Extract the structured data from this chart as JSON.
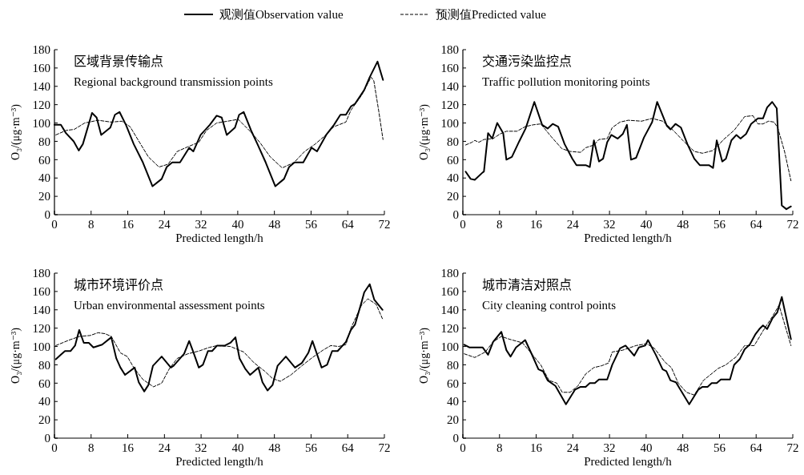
{
  "chart_data": [
    {
      "type": "line",
      "title": "区域背景传输点",
      "subtitle": "Regional background transmission points",
      "xlabel": "Predicted length/h",
      "ylabel": "O₃/(μg·m⁻³)",
      "xlim": [
        0,
        72
      ],
      "xticks": [
        0,
        8,
        16,
        24,
        32,
        40,
        48,
        56,
        64,
        72
      ],
      "ylim": [
        0,
        180
      ],
      "yticks": [
        0,
        20,
        40,
        60,
        80,
        100,
        120,
        140,
        160,
        180
      ],
      "grid": false,
      "legend": "top",
      "series": [
        {
          "name": "观测值Observation value",
          "color": "#000000",
          "line_style": "solid",
          "x": [
            0,
            1.4,
            2.5,
            4.2,
            5.3,
            6.2,
            8.2,
            9.2,
            10.2,
            12.2,
            13.2,
            14.2,
            15.6,
            17.3,
            19.3,
            21.4,
            23.4,
            24.5,
            25.7,
            27.4,
            29.4,
            30.3,
            31.9,
            33.9,
            35.4,
            36.5,
            37.6,
            39.4,
            40.3,
            41.3,
            42.9,
            44.3,
            46.1,
            48.2,
            50.1,
            51.2,
            52.4,
            54.3,
            56.1,
            57.3,
            59.3,
            61,
            62.4,
            63.6,
            64.7,
            65.6,
            67.6,
            68.8,
            70.5,
            71.7
          ],
          "values": [
            98,
            98,
            89,
            80,
            70,
            77,
            111,
            106,
            87,
            95,
            109,
            112,
            98,
            77,
            57,
            31,
            39,
            52,
            57,
            57,
            73,
            69,
            87,
            98,
            108,
            106,
            87,
            95,
            109,
            112,
            92,
            77,
            57,
            31,
            39,
            52,
            57,
            57,
            73,
            69,
            87,
            98,
            109,
            109,
            118,
            121,
            136,
            150,
            167,
            147
          ]
        },
        {
          "name": "预测值Predicted value",
          "color": "#000000",
          "line_style": "dashed",
          "x": [
            0.3,
            2.6,
            4.3,
            6.6,
            9.5,
            12.4,
            14.7,
            16.5,
            18.8,
            20.5,
            22.8,
            24.8,
            26.8,
            29.1,
            31.5,
            33.2,
            35.4,
            37.8,
            40.1,
            42.5,
            44.8,
            47.1,
            49.7,
            52.3,
            54.6,
            56.9,
            59,
            61,
            63.6,
            64.7,
            67,
            69.1,
            69.7,
            70.8,
            71.7
          ],
          "values": [
            87,
            92,
            93,
            100,
            103,
            101,
            102,
            96,
            77,
            63,
            52,
            55,
            69,
            74,
            79,
            92,
            100,
            102,
            104,
            92,
            79,
            63,
            51,
            57,
            69,
            77,
            86,
            96,
            101,
            114,
            130,
            150,
            146,
            112,
            82
          ]
        }
      ]
    },
    {
      "type": "line",
      "title": "交通污染监控点",
      "subtitle": "Traffic pollution monitoring points",
      "xlabel": "Predicted length/h",
      "ylabel": "O₃/(μg·m⁻³)",
      "xlim": [
        0,
        72
      ],
      "xticks": [
        0,
        8,
        16,
        24,
        32,
        40,
        48,
        56,
        64,
        72
      ],
      "ylim": [
        0,
        180
      ],
      "yticks": [
        0,
        20,
        40,
        60,
        80,
        100,
        120,
        140,
        160,
        180
      ],
      "grid": false,
      "series": [
        {
          "color": "#000000",
          "line_style": "solid",
          "x": [
            0.6,
            1.7,
            2.6,
            4.3,
            4.6,
            5.5,
            6.4,
            7.5,
            8.8,
            9.5,
            10.7,
            12.3,
            13.7,
            15.6,
            17.3,
            18.5,
            19.6,
            20.8,
            22.2,
            23.9,
            24.8,
            26.8,
            27.7,
            28.6,
            29.7,
            30.6,
            31.5,
            32.4,
            33.8,
            34.9,
            35.8,
            36.7,
            37.8,
            39.5,
            41.3,
            42.4,
            44.5,
            45.3,
            46.4,
            47.6,
            49,
            50.5,
            51.7,
            53.7,
            54.6,
            55.4,
            56.6,
            57.4,
            58.6,
            59.7,
            60.6,
            61.8,
            62.9,
            64.4,
            65.5,
            66.4,
            67.5,
            68.5,
            69.6,
            70.6,
            71.6
          ],
          "values": [
            47,
            39,
            38,
            46,
            47,
            89,
            83,
            100,
            89,
            60,
            63,
            80,
            94,
            123,
            98,
            94,
            99,
            96,
            77,
            61,
            54,
            54,
            52,
            81,
            58,
            61,
            79,
            87,
            83,
            88,
            98,
            60,
            62,
            84,
            101,
            123,
            97,
            93,
            99,
            95,
            77,
            61,
            54,
            54,
            51,
            81,
            58,
            61,
            81,
            87,
            83,
            88,
            99,
            105,
            105,
            117,
            123,
            116,
            10,
            6,
            9
          ]
        },
        {
          "color": "#000000",
          "line_style": "dashed",
          "x": [
            0.6,
            2,
            2.6,
            3.5,
            4.6,
            6.6,
            8.1,
            9.5,
            11.8,
            13.6,
            15.3,
            17,
            19.3,
            21.6,
            23.4,
            25.7,
            26.8,
            28.6,
            29.7,
            31.5,
            32.6,
            34.3,
            36.1,
            39,
            41.3,
            43.6,
            45.9,
            48.2,
            50.5,
            52.3,
            54.6,
            55.8,
            56.9,
            59.2,
            61.5,
            63.3,
            64.4,
            65.5,
            66.7,
            67.9,
            68.7,
            70.2,
            71.6
          ],
          "values": [
            76,
            79,
            81,
            79,
            82,
            83,
            88,
            91,
            91,
            96,
            98,
            99,
            85,
            72,
            69,
            68,
            73,
            76,
            82,
            83,
            95,
            101,
            103,
            102,
            105,
            102,
            92,
            80,
            69,
            67,
            70,
            76,
            82,
            92,
            107,
            108,
            99,
            99,
            102,
            101,
            95,
            69,
            37
          ]
        }
      ]
    },
    {
      "type": "line",
      "title": "城市环境评价点",
      "subtitle": "Urban environmental assessment points",
      "xlabel": "Predicted length/h",
      "ylabel": "O₃/(μg·m⁻³)",
      "xlim": [
        0,
        72
      ],
      "xticks": [
        0,
        8,
        16,
        24,
        32,
        40,
        48,
        56,
        64,
        72
      ],
      "ylim": [
        0,
        180
      ],
      "yticks": [
        0,
        20,
        40,
        60,
        80,
        100,
        120,
        140,
        160,
        180
      ],
      "grid": false,
      "series": [
        {
          "color": "#000000",
          "line_style": "solid",
          "x": [
            0.3,
            1.4,
            2.3,
            3.5,
            4.5,
            5.4,
            6.4,
            7.5,
            8.5,
            10.4,
            12.4,
            13.5,
            14.4,
            15.4,
            17.5,
            18.4,
            19.6,
            20.5,
            21.5,
            23.4,
            25.4,
            26,
            28.3,
            29.4,
            30.3,
            31.5,
            32.4,
            33.5,
            34.4,
            35.5,
            37.2,
            38.4,
            39.5,
            40.4,
            41.6,
            42.7,
            44.5,
            45.4,
            46.5,
            47.6,
            48.7,
            50.5,
            52.5,
            54,
            55.4,
            56.3,
            58.3,
            59.5,
            60.6,
            61.8,
            63.6,
            64.7,
            65.6,
            67,
            67.6,
            68.8,
            69.8,
            71.6
          ],
          "values": [
            86,
            91,
            95,
            95,
            101,
            118,
            104,
            104,
            99,
            102,
            110,
            87,
            77,
            69,
            77,
            61,
            51,
            58,
            79,
            89,
            77,
            79,
            92,
            106,
            94,
            77,
            80,
            95,
            95,
            101,
            101,
            104,
            110,
            87,
            76,
            69,
            77,
            61,
            52,
            58,
            79,
            89,
            77,
            82,
            93,
            106,
            77,
            80,
            95,
            95,
            105,
            118,
            124,
            148,
            159,
            168,
            151,
            140
          ]
        },
        {
          "color": "#000000",
          "line_style": "dashed",
          "x": [
            0.3,
            3.2,
            5.5,
            7.8,
            9.5,
            11,
            12.4,
            14.4,
            15.9,
            17.3,
            19.3,
            21.6,
            23.4,
            25.1,
            26.8,
            29.1,
            31.5,
            33.8,
            35.5,
            38.4,
            41.3,
            43.6,
            45.9,
            47.6,
            49.3,
            51.6,
            54,
            56.3,
            58.6,
            60.3,
            62,
            63.6,
            64.7,
            67,
            68.4,
            70.2,
            71.6
          ],
          "values": [
            101,
            107,
            111,
            112,
            115,
            114,
            111,
            93,
            89,
            77,
            64,
            56,
            60,
            76,
            87,
            92,
            95,
            99,
            101,
            100,
            94,
            82,
            73,
            65,
            62,
            69,
            79,
            88,
            96,
            101,
            100,
            102,
            120,
            145,
            152,
            146,
            130
          ]
        }
      ]
    },
    {
      "type": "line",
      "title": "城市清洁对照点",
      "subtitle": "City cleaning control points",
      "xlabel": "Predicted length/h",
      "ylabel": "O₃/(μg·m⁻³)",
      "xlim": [
        0,
        72
      ],
      "xticks": [
        0,
        8,
        16,
        24,
        32,
        40,
        48,
        56,
        64,
        72
      ],
      "ylim": [
        0,
        180
      ],
      "yticks": [
        0,
        20,
        40,
        60,
        80,
        100,
        120,
        140,
        160,
        180
      ],
      "grid": false,
      "series": [
        {
          "color": "#000000",
          "line_style": "solid",
          "x": [
            0.3,
            1.4,
            4.3,
            5.5,
            6.6,
            8.4,
            9.5,
            10.4,
            11.6,
            13.6,
            15,
            16.5,
            17.5,
            18.5,
            20.2,
            22.5,
            24.5,
            25.7,
            26.8,
            27.7,
            28.8,
            29.7,
            31.5,
            32.6,
            34.3,
            35.5,
            37.4,
            38.4,
            39.8,
            40.4,
            42.1,
            43.6,
            44.4,
            45.3,
            46.5,
            49.4,
            51.4,
            52.3,
            53.4,
            54.3,
            55.4,
            56.3,
            58.3,
            59.2,
            60.4,
            61.5,
            62.6,
            63.8,
            64.7,
            65.5,
            66.4,
            67.6,
            68.6,
            69.6,
            71.6
          ],
          "values": [
            102,
            99,
            99,
            91,
            105,
            116,
            96,
            89,
            99,
            107,
            92,
            75,
            73,
            63,
            57,
            37,
            53,
            56,
            56,
            60,
            60,
            64,
            64,
            80,
            98,
            101,
            90,
            99,
            101,
            107,
            91,
            75,
            73,
            63,
            61,
            37,
            53,
            56,
            56,
            60,
            60,
            64,
            64,
            80,
            86,
            97,
            102,
            113,
            119,
            123,
            119,
            131,
            137,
            154,
            108
          ]
        },
        {
          "color": "#000000",
          "line_style": "dashed",
          "x": [
            0.3,
            2.6,
            4.9,
            6.6,
            8.4,
            10.1,
            13,
            14.7,
            17,
            18.8,
            20.5,
            21.7,
            23.4,
            25.1,
            26.8,
            28.6,
            30.3,
            31.8,
            32.6,
            34.9,
            37.8,
            40.1,
            41.8,
            44.1,
            45.5,
            47,
            48.8,
            50.5,
            52.5,
            55.7,
            57.4,
            59.7,
            61.5,
            63.6,
            65.5,
            67.6,
            69,
            71.6
          ],
          "values": [
            92,
            88,
            94,
            105,
            111,
            108,
            104,
            94,
            80,
            63,
            60,
            50,
            50,
            57,
            70,
            77,
            79,
            82,
            94,
            96,
            101,
            103,
            98,
            83,
            77,
            60,
            50,
            47,
            63,
            76,
            80,
            89,
            101,
            101,
            117,
            133,
            145,
            101
          ]
        }
      ]
    }
  ]
}
